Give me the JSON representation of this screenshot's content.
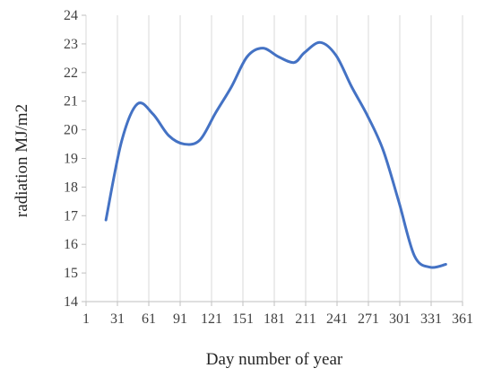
{
  "chart_data": {
    "type": "line",
    "title": "",
    "xlabel": "Day number of year",
    "ylabel": "radiation  MJ/m2",
    "xlim": [
      1,
      361
    ],
    "ylim": [
      14,
      24
    ],
    "x_ticks": [
      1,
      31,
      61,
      91,
      121,
      151,
      181,
      211,
      241,
      271,
      301,
      331,
      361
    ],
    "y_ticks": [
      14,
      15,
      16,
      17,
      18,
      19,
      20,
      21,
      22,
      23,
      24
    ],
    "grid": "vertical",
    "legend": "none",
    "series": [
      {
        "color": "#4472c4",
        "x": [
          20,
          35,
          50,
          65,
          80,
          95,
          110,
          125,
          140,
          155,
          170,
          185,
          200,
          210,
          225,
          240,
          255,
          270,
          285,
          300,
          315,
          330,
          345
        ],
        "y": [
          16.85,
          19.6,
          20.9,
          20.55,
          19.8,
          19.5,
          19.65,
          20.6,
          21.5,
          22.55,
          22.85,
          22.55,
          22.35,
          22.7,
          23.05,
          22.6,
          21.5,
          20.5,
          19.3,
          17.5,
          15.6,
          15.2,
          15.3
        ]
      }
    ]
  }
}
